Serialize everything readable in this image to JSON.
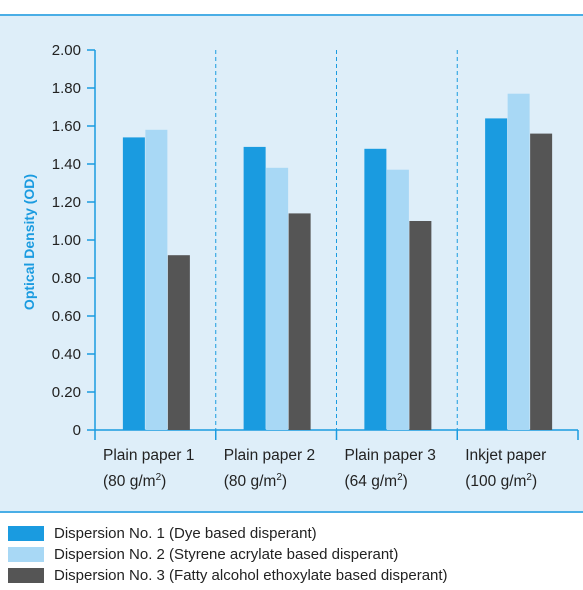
{
  "chart_data": {
    "type": "bar",
    "title": "",
    "xlabel": "",
    "ylabel": "Optical Density (OD)",
    "ylim": [
      0,
      2.0
    ],
    "yticks": [
      "0",
      "0.20",
      "0.40",
      "0.60",
      "0.80",
      "1.00",
      "1.20",
      "1.40",
      "1.60",
      "1.80",
      "2.00"
    ],
    "ytick_values": [
      0,
      0.2,
      0.4,
      0.6,
      0.8,
      1.0,
      1.2,
      1.4,
      1.6,
      1.8,
      2.0
    ],
    "categories": [
      {
        "line1": "Plain paper 1",
        "line2": "(80 g/m",
        "sup": "2",
        "close": ")"
      },
      {
        "line1": "Plain paper 2",
        "line2": "(80 g/m",
        "sup": "2",
        "close": ")"
      },
      {
        "line1": "Plain paper 3",
        "line2": "(64 g/m",
        "sup": "2",
        "close": ")"
      },
      {
        "line1": "Inkjet paper",
        "line2": "(100 g/m",
        "sup": "2",
        "close": ")"
      }
    ],
    "series": [
      {
        "name": "Dispersion No. 1 (Dye based disperant)",
        "color": "#1a9be0",
        "values": [
          1.54,
          1.49,
          1.48,
          1.64
        ]
      },
      {
        "name": "Dispersion No. 2 (Styrene acrylate based disperant)",
        "color": "#a8d8f5",
        "values": [
          1.58,
          1.38,
          1.37,
          1.77
        ]
      },
      {
        "name": "Dispersion No. 3 (Fatty alcohol ethoxylate based disperant)",
        "color": "#555555",
        "values": [
          0.92,
          1.14,
          1.1,
          1.56
        ]
      }
    ],
    "grid": false,
    "category_separators": "dashed",
    "legend_position": "bottom"
  }
}
